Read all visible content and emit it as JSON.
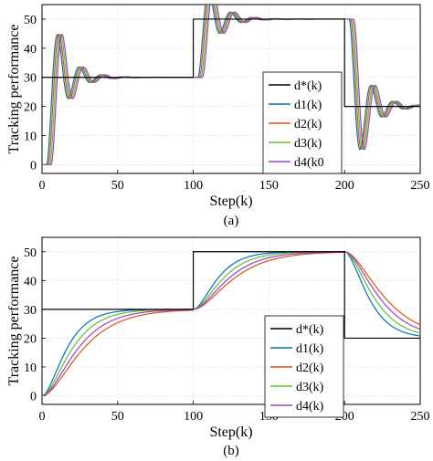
{
  "chart_data": [
    {
      "type": "line",
      "caption": "(a)",
      "xlabel": "Step(k)",
      "ylabel": "Tracking performance",
      "xlim": [
        0,
        250
      ],
      "ylim": [
        -3,
        55
      ],
      "xticks": [
        "0",
        "50",
        "100",
        "150",
        "200",
        "250"
      ],
      "yticks": [
        "0",
        "10",
        "20",
        "30",
        "40",
        "50"
      ],
      "grid": true,
      "legend_position": "right-middle",
      "reference": {
        "name": "d*(k)",
        "x": [
          0,
          100,
          100,
          200,
          200,
          250
        ],
        "y": [
          30,
          30,
          50,
          50,
          20,
          20
        ]
      },
      "series": [
        {
          "name": "d1(k)",
          "color": "#0072bd",
          "response": "oscillatory",
          "delay": 3,
          "initial": 0
        },
        {
          "name": "d2(k)",
          "color": "#d95319",
          "response": "oscillatory",
          "delay": 4,
          "initial": 0
        },
        {
          "name": "d3(k)",
          "color": "#5fc32b",
          "response": "oscillatory",
          "delay": 5,
          "initial": 0
        },
        {
          "name": "d4(k0",
          "color": "#a040c8",
          "response": "oscillatory",
          "delay": 6,
          "initial": 0
        }
      ]
    },
    {
      "type": "line",
      "caption": "(b)",
      "xlabel": "Step(k)",
      "ylabel": "Tracking performance",
      "xlim": [
        0,
        250
      ],
      "ylim": [
        -3,
        55
      ],
      "xticks": [
        "0",
        "50",
        "100",
        "150",
        "200",
        "250"
      ],
      "yticks": [
        "0",
        "10",
        "20",
        "30",
        "40",
        "50"
      ],
      "grid": true,
      "legend_position": "right-lower",
      "reference": {
        "name": "d*(k)",
        "x": [
          0,
          100,
          100,
          200,
          200,
          250
        ],
        "y": [
          30,
          30,
          50,
          50,
          20,
          20
        ]
      },
      "series": [
        {
          "name": "d1(k)",
          "color": "#0072bd",
          "response": "smooth",
          "tau": 9,
          "initial": 0
        },
        {
          "name": "d2(k)",
          "color": "#d95319",
          "response": "smooth",
          "tau": 15,
          "initial": 0
        },
        {
          "name": "d3(k)",
          "color": "#5fc32b",
          "response": "smooth",
          "tau": 11,
          "initial": 0
        },
        {
          "name": "d4(k)",
          "color": "#a040c8",
          "response": "smooth",
          "tau": 13,
          "initial": 0
        }
      ]
    }
  ]
}
